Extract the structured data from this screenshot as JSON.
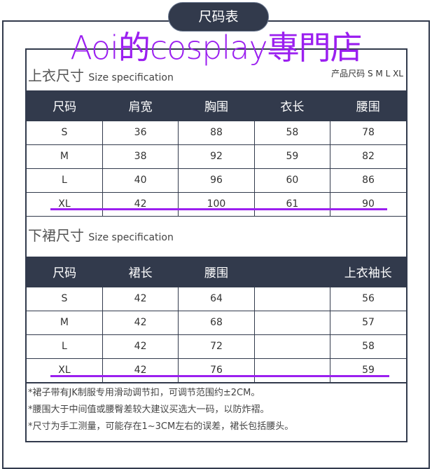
{
  "badge": "尺码表",
  "watermark": "Aoi的cosplay專門店",
  "top": {
    "title": "上衣尺寸",
    "subtitle": "Size specification",
    "sizes_label": "产品尺码 S M L XL",
    "headers": [
      "尺码",
      "肩宽",
      "胸围",
      "衣长",
      "腰围"
    ],
    "rows": [
      [
        "S",
        "36",
        "88",
        "58",
        "78"
      ],
      [
        "M",
        "38",
        "92",
        "59",
        "82"
      ],
      [
        "L",
        "40",
        "96",
        "60",
        "86"
      ],
      [
        "XL",
        "42",
        "100",
        "61",
        "90"
      ]
    ]
  },
  "bottom": {
    "title": "下裙尺寸",
    "subtitle": "Size specification",
    "headers": [
      "尺码",
      "裙长",
      "腰围",
      "",
      "上衣袖长"
    ],
    "rows": [
      [
        "S",
        "42",
        "64",
        "",
        "56"
      ],
      [
        "M",
        "42",
        "68",
        "",
        "57"
      ],
      [
        "L",
        "42",
        "72",
        "",
        "58"
      ],
      [
        "XL",
        "42",
        "76",
        "",
        "59"
      ]
    ]
  },
  "notes": [
    "*裙子带有JK制服专用滑动调节扣，可调节范围约±2CM。",
    "*腰围大于中间值或腰臀差较大建议买选大一码，以防炸褶。",
    "*尺寸为手工测量，可能存在1~3CM左右的误差，裙长包括腰头。"
  ],
  "colors": {
    "header": "#323a4c",
    "accent": "#9b1ff0"
  }
}
